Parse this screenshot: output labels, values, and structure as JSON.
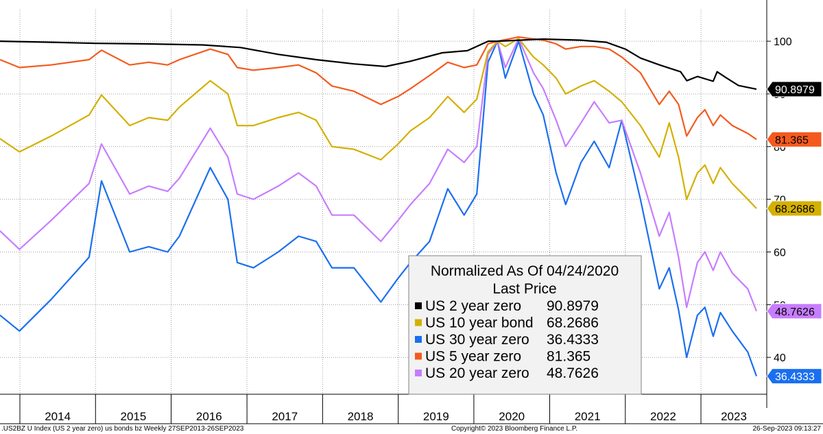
{
  "chart_data": {
    "type": "line",
    "legend": {
      "title": "Normalized As Of 04/24/2020",
      "subtitle": "Last Price",
      "placement": "bottom-center"
    },
    "yaxis": {
      "ticks": [
        40,
        50,
        60,
        70,
        80,
        90,
        100
      ],
      "tick_labels": [
        "40",
        "50",
        "60",
        "70",
        "80",
        "90",
        "100"
      ],
      "ylim": [
        33,
        106
      ],
      "side": "right"
    },
    "xaxis": {
      "years": [
        "2014",
        "2015",
        "2016",
        "2017",
        "2018",
        "2019",
        "2020",
        "2021",
        "2022",
        "2023"
      ],
      "xlim": [
        "2013-09-27",
        "2023-09-26"
      ]
    },
    "grid": true,
    "series": [
      {
        "name": "US 2 year zero",
        "last_value": "90.8979",
        "color": "#000000",
        "text_color": "#ffffff",
        "points": [
          [
            "2013-09-27",
            100
          ],
          [
            "2014-06-01",
            99.8
          ],
          [
            "2015-01-01",
            99.6
          ],
          [
            "2015-09-01",
            99.5
          ],
          [
            "2016-06-01",
            99.3
          ],
          [
            "2016-12-01",
            98.8
          ],
          [
            "2017-06-01",
            97.5
          ],
          [
            "2017-12-01",
            96.5
          ],
          [
            "2018-06-01",
            95.7
          ],
          [
            "2018-11-01",
            95.2
          ],
          [
            "2019-03-01",
            96.2
          ],
          [
            "2019-08-01",
            97.8
          ],
          [
            "2019-12-01",
            98.2
          ],
          [
            "2020-03-10",
            100
          ],
          [
            "2020-04-24",
            100
          ],
          [
            "2020-12-01",
            100.4
          ],
          [
            "2021-06-01",
            100.2
          ],
          [
            "2021-10-01",
            99.8
          ],
          [
            "2022-01-01",
            98.5
          ],
          [
            "2022-03-15",
            96.8
          ],
          [
            "2022-06-15",
            95.5
          ],
          [
            "2022-09-25",
            94.2
          ],
          [
            "2022-10-25",
            92.5
          ],
          [
            "2022-12-15",
            93.3
          ],
          [
            "2023-03-01",
            92.4
          ],
          [
            "2023-03-20",
            94.2
          ],
          [
            "2023-05-01",
            93.1
          ],
          [
            "2023-07-01",
            91.6
          ],
          [
            "2023-09-26",
            90.8979
          ]
        ]
      },
      {
        "name": "US 10 year bond",
        "last_value": "68.2686",
        "color": "#d4b000",
        "text_color": "#000000",
        "points": [
          [
            "2013-09-27",
            81.5
          ],
          [
            "2013-12-30",
            79
          ],
          [
            "2014-06-01",
            82
          ],
          [
            "2014-12-01",
            86
          ],
          [
            "2015-01-30",
            89.8
          ],
          [
            "2015-06-15",
            84
          ],
          [
            "2015-09-15",
            85.5
          ],
          [
            "2015-12-15",
            85
          ],
          [
            "2016-02-10",
            87.5
          ],
          [
            "2016-07-08",
            92.5
          ],
          [
            "2016-10-01",
            90
          ],
          [
            "2016-11-15",
            84
          ],
          [
            "2017-02-01",
            84
          ],
          [
            "2017-06-01",
            85.5
          ],
          [
            "2017-09-07",
            86.5
          ],
          [
            "2017-12-01",
            85
          ],
          [
            "2018-02-15",
            80
          ],
          [
            "2018-06-01",
            79.5
          ],
          [
            "2018-10-09",
            77.5
          ],
          [
            "2018-12-31",
            80.5
          ],
          [
            "2019-03-01",
            83
          ],
          [
            "2019-06-01",
            85.5
          ],
          [
            "2019-08-28",
            89.5
          ],
          [
            "2019-11-15",
            86.5
          ],
          [
            "2020-01-15",
            89
          ],
          [
            "2020-03-09",
            98
          ],
          [
            "2020-04-24",
            100
          ],
          [
            "2020-06-01",
            99
          ],
          [
            "2020-08-04",
            100.5
          ],
          [
            "2020-10-15",
            97
          ],
          [
            "2020-12-01",
            95.5
          ],
          [
            "2021-02-01",
            93
          ],
          [
            "2021-03-19",
            90
          ],
          [
            "2021-06-01",
            91.5
          ],
          [
            "2021-08-04",
            92.5
          ],
          [
            "2021-10-15",
            90.5
          ],
          [
            "2021-12-15",
            88.5
          ],
          [
            "2022-03-15",
            84
          ],
          [
            "2022-06-14",
            78
          ],
          [
            "2022-08-01",
            84.5
          ],
          [
            "2022-09-15",
            78
          ],
          [
            "2022-10-24",
            70
          ],
          [
            "2022-12-15",
            75
          ],
          [
            "2023-01-20",
            76.5
          ],
          [
            "2023-03-01",
            73
          ],
          [
            "2023-04-05",
            76
          ],
          [
            "2023-06-01",
            73
          ],
          [
            "2023-08-15",
            70
          ],
          [
            "2023-09-26",
            68.2686
          ]
        ]
      },
      {
        "name": "US 30 year zero",
        "last_value": "36.4333",
        "color": "#1a6ff0",
        "text_color": "#ffffff",
        "points": [
          [
            "2013-09-27",
            48
          ],
          [
            "2013-12-30",
            45
          ],
          [
            "2014-06-01",
            51
          ],
          [
            "2014-12-01",
            59
          ],
          [
            "2015-01-30",
            73.5
          ],
          [
            "2015-06-15",
            60
          ],
          [
            "2015-09-15",
            61
          ],
          [
            "2015-12-15",
            60
          ],
          [
            "2016-02-10",
            63
          ],
          [
            "2016-07-08",
            76
          ],
          [
            "2016-10-01",
            70
          ],
          [
            "2016-11-15",
            58
          ],
          [
            "2017-02-01",
            57
          ],
          [
            "2017-06-01",
            60
          ],
          [
            "2017-09-07",
            63
          ],
          [
            "2017-12-01",
            62
          ],
          [
            "2018-02-15",
            57
          ],
          [
            "2018-06-01",
            57
          ],
          [
            "2018-10-09",
            50.5
          ],
          [
            "2018-12-31",
            55
          ],
          [
            "2019-03-01",
            58
          ],
          [
            "2019-06-01",
            62
          ],
          [
            "2019-08-28",
            72
          ],
          [
            "2019-11-15",
            67
          ],
          [
            "2020-01-15",
            71
          ],
          [
            "2020-03-09",
            96
          ],
          [
            "2020-04-24",
            100
          ],
          [
            "2020-06-01",
            93
          ],
          [
            "2020-08-04",
            100
          ],
          [
            "2020-10-15",
            90
          ],
          [
            "2020-12-01",
            86
          ],
          [
            "2021-02-01",
            75
          ],
          [
            "2021-03-19",
            69
          ],
          [
            "2021-06-01",
            77
          ],
          [
            "2021-08-04",
            81
          ],
          [
            "2021-10-15",
            76
          ],
          [
            "2021-12-15",
            85
          ],
          [
            "2022-03-15",
            70
          ],
          [
            "2022-06-14",
            53
          ],
          [
            "2022-08-01",
            57
          ],
          [
            "2022-09-15",
            49
          ],
          [
            "2022-10-24",
            40
          ],
          [
            "2022-12-15",
            48
          ],
          [
            "2023-01-20",
            49.5
          ],
          [
            "2023-03-01",
            44
          ],
          [
            "2023-04-05",
            48.5
          ],
          [
            "2023-06-01",
            45
          ],
          [
            "2023-08-15",
            41
          ],
          [
            "2023-09-26",
            36.4333
          ]
        ]
      },
      {
        "name": "US 5 year zero",
        "last_value": "81.365",
        "color": "#f45a1e",
        "text_color": "#000000",
        "points": [
          [
            "2013-09-27",
            96.5
          ],
          [
            "2013-12-30",
            95
          ],
          [
            "2014-06-01",
            95.5
          ],
          [
            "2014-12-01",
            96.5
          ],
          [
            "2015-01-30",
            98.3
          ],
          [
            "2015-06-15",
            95.5
          ],
          [
            "2015-09-15",
            96
          ],
          [
            "2015-12-15",
            95.5
          ],
          [
            "2016-02-10",
            96.5
          ],
          [
            "2016-07-08",
            98.5
          ],
          [
            "2016-10-01",
            97.5
          ],
          [
            "2016-11-15",
            95
          ],
          [
            "2017-02-01",
            94.5
          ],
          [
            "2017-06-01",
            95
          ],
          [
            "2017-09-07",
            95.5
          ],
          [
            "2017-12-01",
            94
          ],
          [
            "2018-02-15",
            91.5
          ],
          [
            "2018-06-01",
            90.5
          ],
          [
            "2018-10-09",
            88
          ],
          [
            "2018-12-31",
            89.5
          ],
          [
            "2019-03-01",
            91
          ],
          [
            "2019-06-01",
            93.5
          ],
          [
            "2019-08-28",
            96
          ],
          [
            "2019-11-15",
            95
          ],
          [
            "2020-01-15",
            95.5
          ],
          [
            "2020-03-09",
            99.5
          ],
          [
            "2020-04-24",
            100
          ],
          [
            "2020-08-04",
            100.8
          ],
          [
            "2020-12-01",
            100.2
          ],
          [
            "2021-02-01",
            99.5
          ],
          [
            "2021-03-19",
            98.5
          ],
          [
            "2021-06-01",
            99
          ],
          [
            "2021-08-04",
            99
          ],
          [
            "2021-10-15",
            98.5
          ],
          [
            "2021-12-15",
            97
          ],
          [
            "2022-03-15",
            94
          ],
          [
            "2022-06-14",
            88
          ],
          [
            "2022-08-01",
            90.5
          ],
          [
            "2022-09-15",
            88
          ],
          [
            "2022-10-24",
            82
          ],
          [
            "2022-12-15",
            85.5
          ],
          [
            "2023-01-20",
            87
          ],
          [
            "2023-03-01",
            84
          ],
          [
            "2023-04-05",
            86
          ],
          [
            "2023-06-01",
            84
          ],
          [
            "2023-08-15",
            82.5
          ],
          [
            "2023-09-26",
            81.365
          ]
        ]
      },
      {
        "name": "US 20 year zero",
        "last_value": "48.7626",
        "color": "#c77dff",
        "text_color": "#000000",
        "points": [
          [
            "2013-09-27",
            64
          ],
          [
            "2013-12-30",
            60.5
          ],
          [
            "2014-06-01",
            66
          ],
          [
            "2014-12-01",
            73
          ],
          [
            "2015-01-30",
            80.5
          ],
          [
            "2015-06-15",
            71
          ],
          [
            "2015-09-15",
            72.5
          ],
          [
            "2015-12-15",
            71.5
          ],
          [
            "2016-02-10",
            74
          ],
          [
            "2016-07-08",
            83.5
          ],
          [
            "2016-10-01",
            78
          ],
          [
            "2016-11-15",
            71
          ],
          [
            "2017-02-01",
            70
          ],
          [
            "2017-06-01",
            72.5
          ],
          [
            "2017-09-07",
            75
          ],
          [
            "2017-12-01",
            72.5
          ],
          [
            "2018-02-15",
            67
          ],
          [
            "2018-06-01",
            67
          ],
          [
            "2018-10-09",
            62
          ],
          [
            "2018-12-31",
            66
          ],
          [
            "2019-03-01",
            69
          ],
          [
            "2019-06-01",
            73
          ],
          [
            "2019-08-28",
            79.5
          ],
          [
            "2019-11-15",
            77
          ],
          [
            "2020-01-15",
            80
          ],
          [
            "2020-03-09",
            97.5
          ],
          [
            "2020-04-24",
            100
          ],
          [
            "2020-06-01",
            95
          ],
          [
            "2020-08-04",
            100.5
          ],
          [
            "2020-10-15",
            94
          ],
          [
            "2020-12-01",
            91
          ],
          [
            "2021-02-01",
            85
          ],
          [
            "2021-03-19",
            80
          ],
          [
            "2021-06-01",
            84.5
          ],
          [
            "2021-08-04",
            88.5
          ],
          [
            "2021-10-15",
            84.5
          ],
          [
            "2021-12-15",
            85
          ],
          [
            "2022-03-15",
            75
          ],
          [
            "2022-06-14",
            63
          ],
          [
            "2022-08-01",
            67.5
          ],
          [
            "2022-09-15",
            59
          ],
          [
            "2022-10-24",
            49.5
          ],
          [
            "2022-12-15",
            58
          ],
          [
            "2023-01-20",
            60
          ],
          [
            "2023-03-01",
            56.5
          ],
          [
            "2023-04-05",
            60
          ],
          [
            "2023-06-01",
            56
          ],
          [
            "2023-08-15",
            53
          ],
          [
            "2023-09-26",
            48.7626
          ]
        ]
      }
    ],
    "footer": {
      "left": ".US2BZ U Index (US 2 year zero) us bonds bz  Weekly 27SEP2013-26SEP2023",
      "center": "Copyright© 2023 Bloomberg Finance L.P.",
      "right": "26-Sep-2023 09:13:27"
    }
  }
}
